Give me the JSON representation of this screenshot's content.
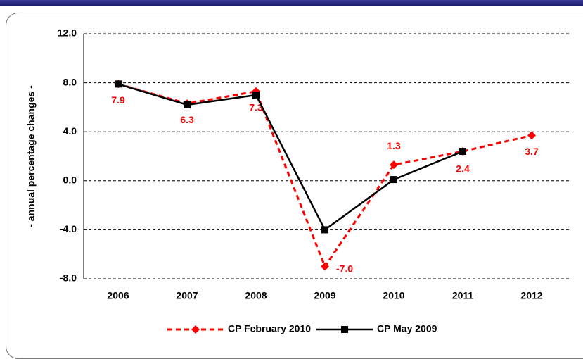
{
  "chart_data": {
    "type": "line",
    "y_label": "- annual percentage changes -",
    "categories": [
      "2006",
      "2007",
      "2008",
      "2009",
      "2010",
      "2011",
      "2012"
    ],
    "series": [
      {
        "name": "CP February 2010",
        "color": "#ff0000",
        "dashed": true,
        "marker": "diamond",
        "values": [
          7.9,
          6.3,
          7.3,
          -7.0,
          1.3,
          2.4,
          3.7
        ],
        "value_labels": [
          "7.9",
          "6.3",
          "7.3",
          "-7.0",
          "1.3",
          "2.4",
          "3.7"
        ]
      },
      {
        "name": "CP May 2009",
        "color": "#000000",
        "dashed": false,
        "marker": "square",
        "values": [
          7.9,
          6.2,
          7.0,
          -4.0,
          0.1,
          2.4,
          null
        ]
      }
    ],
    "ylim": [
      -8.0,
      12.0
    ],
    "yticks": [
      {
        "value": -8,
        "label": "-8.0"
      },
      {
        "value": -4,
        "label": "-4.0"
      },
      {
        "value": 0,
        "label": "0.0"
      },
      {
        "value": 4,
        "label": "4.0"
      },
      {
        "value": 8,
        "label": "8.0"
      },
      {
        "value": 12,
        "label": "12.0"
      }
    ],
    "grid": true,
    "legend": "bottom"
  }
}
